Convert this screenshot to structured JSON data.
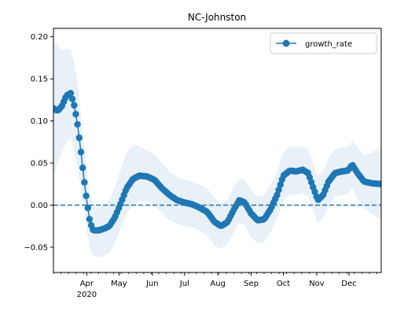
{
  "chart_data": {
    "type": "line",
    "title": "NC-Johnston",
    "xlabel": "",
    "ylabel": "",
    "x_range": [
      "2020-03-01",
      "2020-12-31"
    ],
    "ylim": [
      -0.08,
      0.21
    ],
    "grid": false,
    "legend_position": "top-right",
    "x_ticks": [
      {
        "date": "2020-04-01",
        "label": "Apr",
        "sublabel": "2020"
      },
      {
        "date": "2020-05-01",
        "label": "May"
      },
      {
        "date": "2020-06-01",
        "label": "Jun"
      },
      {
        "date": "2020-07-01",
        "label": "Jul"
      },
      {
        "date": "2020-08-01",
        "label": "Aug"
      },
      {
        "date": "2020-09-01",
        "label": "Sep"
      },
      {
        "date": "2020-10-01",
        "label": "Oct"
      },
      {
        "date": "2020-11-01",
        "label": "Nov"
      },
      {
        "date": "2020-12-01",
        "label": "Dec"
      }
    ],
    "y_ticks": [
      -0.05,
      0.0,
      0.05,
      0.1,
      0.15,
      0.2
    ],
    "y_tick_labels": [
      "−0.05",
      "0.00",
      "0.05",
      "0.10",
      "0.15",
      "0.20"
    ],
    "reference_line": {
      "y": 0,
      "style": "dashed",
      "color": "#1f77b4"
    },
    "series": [
      {
        "name": "growth_rate",
        "color": "#1f77b4",
        "marker": "circle",
        "points": [
          [
            "2020-03-01",
            0.115
          ],
          [
            "2020-03-05",
            0.112
          ],
          [
            "2020-03-09",
            0.118
          ],
          [
            "2020-03-13",
            0.13
          ],
          [
            "2020-03-17",
            0.133
          ],
          [
            "2020-03-20",
            0.12
          ],
          [
            "2020-03-23",
            0.1
          ],
          [
            "2020-03-26",
            0.07
          ],
          [
            "2020-03-29",
            0.035
          ],
          [
            "2020-04-01",
            0.005
          ],
          [
            "2020-04-04",
            -0.02
          ],
          [
            "2020-04-07",
            -0.03
          ],
          [
            "2020-04-12",
            -0.03
          ],
          [
            "2020-04-17",
            -0.028
          ],
          [
            "2020-04-22",
            -0.025
          ],
          [
            "2020-04-27",
            -0.015
          ],
          [
            "2020-05-02",
            0.0
          ],
          [
            "2020-05-08",
            0.02
          ],
          [
            "2020-05-14",
            0.031
          ],
          [
            "2020-05-20",
            0.035
          ],
          [
            "2020-05-27",
            0.034
          ],
          [
            "2020-06-03",
            0.03
          ],
          [
            "2020-06-10",
            0.02
          ],
          [
            "2020-06-17",
            0.012
          ],
          [
            "2020-06-24",
            0.006
          ],
          [
            "2020-07-01",
            0.003
          ],
          [
            "2020-07-08",
            0.001
          ],
          [
            "2020-07-15",
            -0.003
          ],
          [
            "2020-07-22",
            -0.008
          ],
          [
            "2020-07-29",
            -0.02
          ],
          [
            "2020-08-04",
            -0.025
          ],
          [
            "2020-08-10",
            -0.02
          ],
          [
            "2020-08-16",
            -0.005
          ],
          [
            "2020-08-21",
            0.006
          ],
          [
            "2020-08-26",
            0.003
          ],
          [
            "2020-09-01",
            -0.01
          ],
          [
            "2020-09-07",
            -0.018
          ],
          [
            "2020-09-13",
            -0.017
          ],
          [
            "2020-09-19",
            -0.005
          ],
          [
            "2020-09-25",
            0.012
          ],
          [
            "2020-10-01",
            0.035
          ],
          [
            "2020-10-07",
            0.041
          ],
          [
            "2020-10-13",
            0.04
          ],
          [
            "2020-10-19",
            0.042
          ],
          [
            "2020-10-24",
            0.038
          ],
          [
            "2020-10-29",
            0.02
          ],
          [
            "2020-11-02",
            0.006
          ],
          [
            "2020-11-07",
            0.012
          ],
          [
            "2020-11-12",
            0.028
          ],
          [
            "2020-11-18",
            0.038
          ],
          [
            "2020-11-24",
            0.04
          ],
          [
            "2020-11-30",
            0.041
          ],
          [
            "2020-12-04",
            0.048
          ],
          [
            "2020-12-09",
            0.038
          ],
          [
            "2020-12-15",
            0.028
          ],
          [
            "2020-12-22",
            0.026
          ],
          [
            "2020-12-31",
            0.025
          ]
        ],
        "band": [
          [
            "2020-03-01",
            0.035,
            0.195
          ],
          [
            "2020-03-05",
            0.05,
            0.19
          ],
          [
            "2020-03-09",
            0.062,
            0.185
          ],
          [
            "2020-03-13",
            0.075,
            0.185
          ],
          [
            "2020-03-17",
            0.08,
            0.185
          ],
          [
            "2020-03-20",
            0.065,
            0.172
          ],
          [
            "2020-03-23",
            0.045,
            0.15
          ],
          [
            "2020-03-26",
            0.025,
            0.115
          ],
          [
            "2020-03-29",
            0.0,
            0.075
          ],
          [
            "2020-04-01",
            -0.03,
            0.04
          ],
          [
            "2020-04-04",
            -0.052,
            0.012
          ],
          [
            "2020-04-07",
            -0.06,
            -0.002
          ],
          [
            "2020-04-12",
            -0.062,
            -0.003
          ],
          [
            "2020-04-17",
            -0.06,
            0.0
          ],
          [
            "2020-04-22",
            -0.057,
            0.006
          ],
          [
            "2020-04-27",
            -0.045,
            0.02
          ],
          [
            "2020-05-02",
            -0.03,
            0.04
          ],
          [
            "2020-05-08",
            -0.01,
            0.062
          ],
          [
            "2020-05-14",
            0.0,
            0.072
          ],
          [
            "2020-05-20",
            0.005,
            0.07
          ],
          [
            "2020-05-27",
            0.005,
            0.065
          ],
          [
            "2020-06-03",
            0.0,
            0.06
          ],
          [
            "2020-06-10",
            -0.01,
            0.05
          ],
          [
            "2020-06-17",
            -0.018,
            0.04
          ],
          [
            "2020-06-24",
            -0.022,
            0.034
          ],
          [
            "2020-07-01",
            -0.025,
            0.03
          ],
          [
            "2020-07-08",
            -0.027,
            0.028
          ],
          [
            "2020-07-15",
            -0.03,
            0.024
          ],
          [
            "2020-07-22",
            -0.037,
            0.02
          ],
          [
            "2020-07-29",
            -0.048,
            0.008
          ],
          [
            "2020-08-04",
            -0.052,
            0.002
          ],
          [
            "2020-08-10",
            -0.047,
            0.006
          ],
          [
            "2020-08-16",
            -0.032,
            0.022
          ],
          [
            "2020-08-21",
            -0.02,
            0.032
          ],
          [
            "2020-08-26",
            -0.024,
            0.03
          ],
          [
            "2020-09-01",
            -0.038,
            0.018
          ],
          [
            "2020-09-07",
            -0.045,
            0.01
          ],
          [
            "2020-09-13",
            -0.044,
            0.012
          ],
          [
            "2020-09-19",
            -0.032,
            0.024
          ],
          [
            "2020-09-25",
            -0.016,
            0.04
          ],
          [
            "2020-10-01",
            0.005,
            0.063
          ],
          [
            "2020-10-07",
            0.013,
            0.07
          ],
          [
            "2020-10-13",
            0.012,
            0.068
          ],
          [
            "2020-10-19",
            0.014,
            0.07
          ],
          [
            "2020-10-24",
            0.01,
            0.066
          ],
          [
            "2020-10-29",
            -0.008,
            0.048
          ],
          [
            "2020-11-02",
            -0.022,
            0.034
          ],
          [
            "2020-11-07",
            -0.016,
            0.04
          ],
          [
            "2020-11-12",
            0.0,
            0.056
          ],
          [
            "2020-11-18",
            0.01,
            0.066
          ],
          [
            "2020-11-24",
            0.012,
            0.068
          ],
          [
            "2020-11-30",
            0.013,
            0.069
          ],
          [
            "2020-12-04",
            0.02,
            0.076
          ],
          [
            "2020-12-09",
            0.008,
            0.068
          ],
          [
            "2020-12-15",
            -0.004,
            0.06
          ],
          [
            "2020-12-22",
            -0.01,
            0.062
          ],
          [
            "2020-12-31",
            -0.018,
            0.07
          ]
        ]
      }
    ]
  }
}
